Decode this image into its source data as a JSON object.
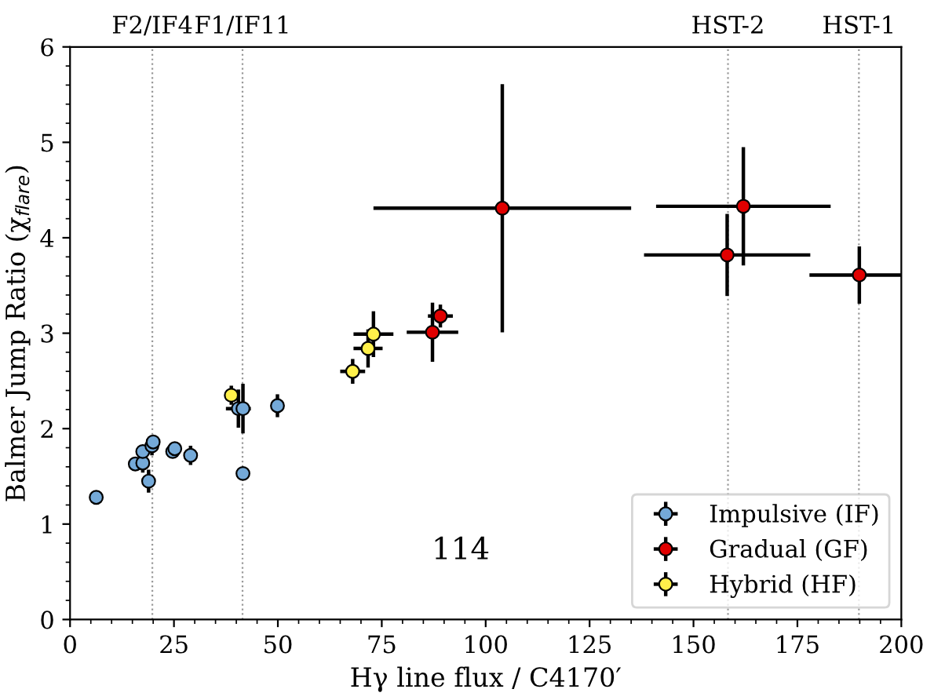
{
  "chart_data": {
    "type": "scatter",
    "xlabel": "Hγ line flux / C4170′",
    "ylabel": "Balmer Jump Ratio (χ$_{flare}$)",
    "xlim": [
      0,
      200
    ],
    "ylim": [
      0,
      6
    ],
    "xticks": [
      0,
      25,
      50,
      75,
      100,
      125,
      150,
      175,
      200
    ],
    "yticks": [
      0,
      1,
      2,
      3,
      4,
      5,
      6
    ],
    "grid": false,
    "legend": "bottom right",
    "marker": "circle",
    "series": [
      {
        "name": "Impulsive (IF)",
        "color": "#74a9d8",
        "x": [
          6.3,
          15.7,
          17.5,
          17.5,
          19.7,
          20.0,
          18.9,
          24.7,
          25.2,
          29.0,
          41.6,
          40.5,
          41.6,
          49.9
        ],
        "values": [
          1.28,
          1.63,
          1.64,
          1.76,
          1.82,
          1.86,
          1.45,
          1.76,
          1.79,
          1.72,
          1.53,
          2.21,
          2.21,
          2.24
        ],
        "errors": [
          null,
          null,
          0.1,
          null,
          0.1,
          null,
          0.12,
          null,
          null,
          0.1,
          0.06,
          0.2,
          0.26,
          0.12
        ],
        "xerrors": [
          null,
          null,
          null,
          null,
          null,
          null,
          null,
          null,
          null,
          null,
          1,
          3,
          1,
          null
        ]
      },
      {
        "name": "Gradual (GF)",
        "color": "#e00000",
        "x": [
          87.2,
          89.1,
          104.0,
          162.0,
          158.1,
          189.9
        ],
        "values": [
          3.01,
          3.18,
          4.31,
          4.33,
          3.82,
          3.61
        ],
        "errors": [
          0.31,
          0.12,
          1.3,
          0.62,
          0.43,
          0.3
        ],
        "xerrors": [
          6.2,
          3,
          31,
          21,
          20,
          12
        ]
      },
      {
        "name": "Hybrid (HF)",
        "color": "#fff04a",
        "x": [
          38.8,
          68.0,
          71.7,
          73.0
        ],
        "values": [
          2.35,
          2.6,
          2.84,
          2.99
        ],
        "errors": [
          0.1,
          0.13,
          0.2,
          0.24
        ],
        "xerrors": [
          null,
          3,
          3.5,
          4.8
        ]
      }
    ],
    "ref_lines": [
      {
        "axis": "x",
        "value": 19.8,
        "label": "F2/IF4",
        "color": "#999999",
        "line_style": "dotted"
      },
      {
        "axis": "x",
        "value": 41.5,
        "label": "F1/IF11",
        "color": "#999999",
        "line_style": "dotted"
      },
      {
        "axis": "x",
        "value": 158.3,
        "label": "HST-2",
        "color": "#999999",
        "line_style": "dotted"
      },
      {
        "axis": "x",
        "value": 189.8,
        "label": "HST-1",
        "color": "#999999",
        "line_style": "dotted"
      }
    ],
    "annotations": [
      "114"
    ]
  }
}
